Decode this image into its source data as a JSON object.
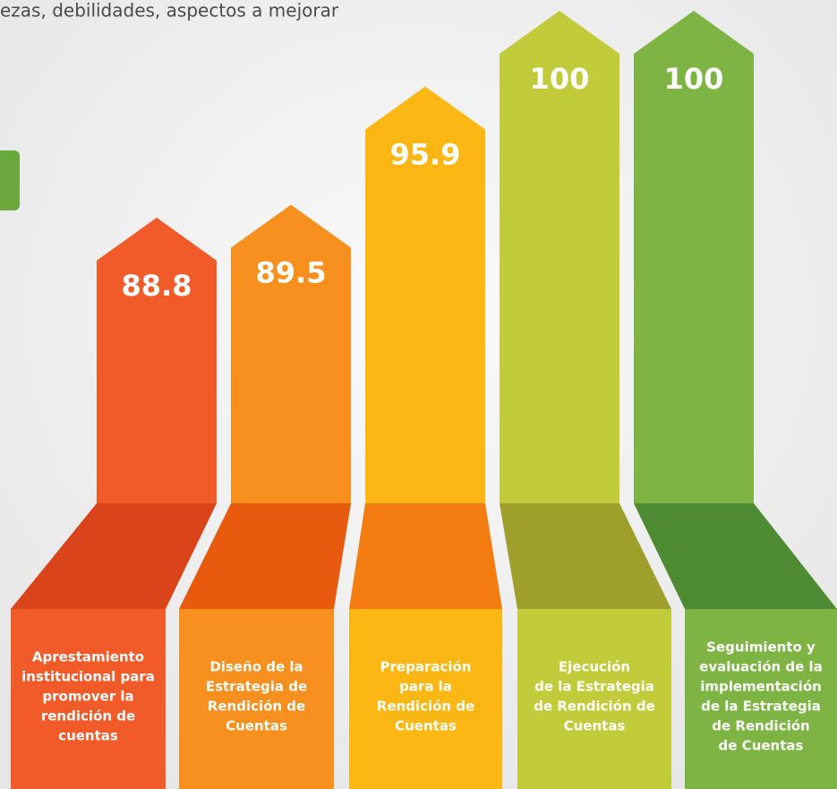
{
  "chart_data": {
    "type": "bar",
    "title": "ezas, debilidades, aspectos a mejorar",
    "categories": [
      [
        "Aprestamiento",
        "institucional para",
        "promover la",
        "rendición de",
        "cuentas"
      ],
      [
        "Diseño de la",
        "Estrategia de",
        "Rendición de",
        "Cuentas"
      ],
      [
        "Preparación",
        "para la",
        "Rendición de",
        "Cuentas"
      ],
      [
        "Ejecución",
        "de la Estrategia",
        "de Rendición de",
        "Cuentas"
      ],
      [
        "Seguimiento y",
        "evaluación de la",
        "implementación",
        "de la Estrategia",
        "de Rendición",
        "de Cuentas"
      ]
    ],
    "values": [
      88.8,
      89.5,
      95.9,
      100,
      100
    ],
    "colors": [
      "#f15a29",
      "#f7901e",
      "#fdb714",
      "#c2cc3a",
      "#7db443"
    ],
    "base_colors": [
      "#d9441a",
      "#e85a0d",
      "#f57c10",
      "#9ea02b",
      "#4f8b33"
    ]
  }
}
